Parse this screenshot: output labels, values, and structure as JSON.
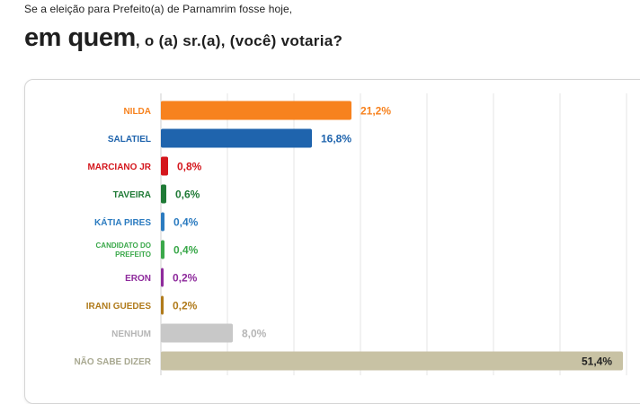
{
  "header": {
    "intro": "Se a eleição para Prefeito(a) de Parnamrim fosse hoje,",
    "question_emphasis": "em quem",
    "question_rest": ", o (a) sr.(a), (você) votaria?"
  },
  "chart_data": {
    "type": "bar",
    "orientation": "horizontal",
    "categories": [
      "NILDA",
      "SALATIEL",
      "MARCIANO JR",
      "TAVEIRA",
      "KÁTIA PIRES",
      "CANDIDATO DO PREFEITO",
      "ERON",
      "IRANI GUEDES",
      "NENHUM",
      "NÃO SABE DIZER"
    ],
    "category_lines": [
      [
        "NILDA"
      ],
      [
        "SALATIEL"
      ],
      [
        "MARCIANO JR"
      ],
      [
        "TAVEIRA"
      ],
      [
        "KÁTIA PIRES"
      ],
      [
        "CANDIDATO DO",
        "PREFEITO"
      ],
      [
        "ERON"
      ],
      [
        "IRANI GUEDES"
      ],
      [
        "NENHUM"
      ],
      [
        "NÃO SABE DIZER"
      ]
    ],
    "values": [
      21.2,
      16.8,
      0.8,
      0.6,
      0.4,
      0.4,
      0.2,
      0.2,
      8.0,
      51.4
    ],
    "value_labels": [
      "21,2%",
      "16,8%",
      "0,8%",
      "0,6%",
      "0,4%",
      "0,4%",
      "0,2%",
      "0,2%",
      "8,0%",
      "51,4%"
    ],
    "colors": [
      "#f7821e",
      "#1f64ad",
      "#d4161c",
      "#1f7a36",
      "#2b7bc0",
      "#3aa84a",
      "#8e2a9c",
      "#b07a1a",
      "#c8c8c8",
      "#c8c2a4"
    ],
    "label_colors": [
      "#f7821e",
      "#1f64ad",
      "#d4161c",
      "#1f7a36",
      "#2b7bc0",
      "#3aa84a",
      "#8e2a9c",
      "#b07a1a",
      "#b5b5b5",
      "#a8a890"
    ],
    "value_label_colors": [
      "#f7821e",
      "#1f64ad",
      "#d4161c",
      "#1f7a36",
      "#2b7bc0",
      "#3aa84a",
      "#8e2a9c",
      "#b07a1a",
      "#b5b5b5",
      "#222222"
    ],
    "value_label_inside": [
      false,
      false,
      false,
      false,
      false,
      false,
      false,
      false,
      false,
      true
    ],
    "xlim": [
      0,
      60
    ],
    "grid": true
  }
}
